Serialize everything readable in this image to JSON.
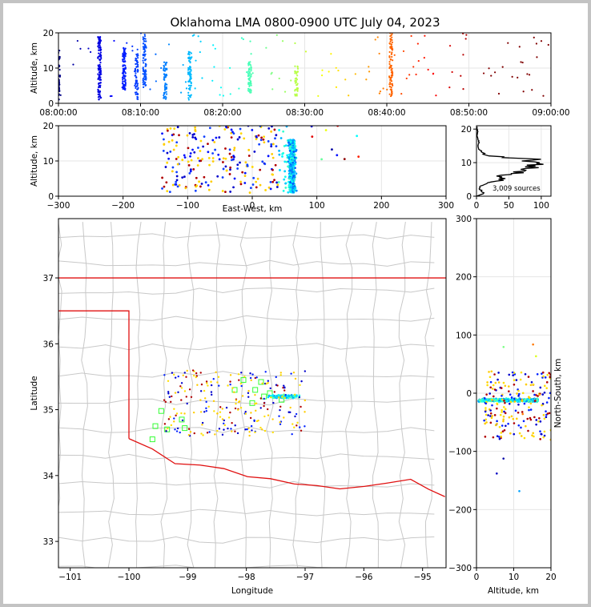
{
  "title": "Oklahoma LMA 0800-0900 UTC July 04, 2023",
  "colors": {
    "state_border": "#e01010",
    "county": "#c8c8c8",
    "grid": "#e6e6e6",
    "station": "#33ff33"
  },
  "chart_data": [
    {
      "id": "time-height",
      "type": "scatter",
      "ylabel": "Altitude, km",
      "ylim": [
        0,
        20
      ],
      "xlim": [
        "08:00:00",
        "09:00:00"
      ],
      "yticks": [
        "0",
        "10",
        "20"
      ],
      "xticks": [
        "08:00:00",
        "08:10:00",
        "08:20:00",
        "08:30:00",
        "08:40:00",
        "08:50:00",
        "09:00:00"
      ],
      "colormap": "jet by time",
      "clusters": [
        {
          "t_min": 0,
          "alt": [
            1,
            15
          ],
          "n": 60
        },
        {
          "t_min": 5,
          "alt": [
            1,
            19
          ],
          "n": 120
        },
        {
          "t_min": 8,
          "alt": [
            4,
            16
          ],
          "n": 90
        },
        {
          "t_min": 9.5,
          "alt": [
            1,
            14
          ],
          "n": 60
        },
        {
          "t_min": 10.5,
          "alt": [
            5,
            20
          ],
          "n": 80
        },
        {
          "t_min": 13,
          "alt": [
            1,
            12
          ],
          "n": 60
        },
        {
          "t_min": 16,
          "alt": [
            1,
            15
          ],
          "n": 70
        },
        {
          "t_min": 23.3,
          "alt": [
            3,
            12
          ],
          "n": 60
        },
        {
          "t_min": 29,
          "alt": [
            2,
            11
          ],
          "n": 40
        },
        {
          "t_min": 40.5,
          "alt": [
            2,
            20
          ],
          "n": 80
        }
      ]
    },
    {
      "id": "ew-height",
      "type": "scatter",
      "xlabel": "East-West, km",
      "ylabel": "Altitude, km",
      "xlim": [
        -300,
        300
      ],
      "ylim": [
        0,
        20
      ],
      "xticks": [
        "−300",
        "−200",
        "−100",
        "0",
        "100",
        "200",
        "300"
      ],
      "yticks": [
        "0",
        "10",
        "20"
      ]
    },
    {
      "id": "altitude-histogram",
      "type": "line",
      "xlim": [
        0,
        115
      ],
      "ylim": [
        0,
        21
      ],
      "xticks": [
        "0",
        "50",
        "100"
      ],
      "yticks": [
        "0",
        "10",
        "20"
      ],
      "annotation": "3,009 sources",
      "profile": [
        [
          0,
          0
        ],
        [
          14,
          1
        ],
        [
          4,
          2
        ],
        [
          6,
          3
        ],
        [
          18,
          4
        ],
        [
          45,
          5
        ],
        [
          35,
          6
        ],
        [
          60,
          7
        ],
        [
          75,
          8
        ],
        [
          95,
          9
        ],
        [
          110,
          10
        ],
        [
          80,
          11
        ],
        [
          20,
          12
        ],
        [
          10,
          13
        ],
        [
          3,
          14
        ],
        [
          2,
          15
        ],
        [
          4,
          16
        ],
        [
          2,
          17
        ],
        [
          1,
          18
        ],
        [
          2,
          19
        ],
        [
          1,
          20
        ]
      ]
    },
    {
      "id": "plan-view",
      "type": "scatter",
      "xlabel": "Longitude",
      "ylabel": "Latitude",
      "xlim": [
        -101.2,
        -94.6
      ],
      "ylim": [
        32.6,
        37.9
      ],
      "xticks": [
        "−101",
        "−100",
        "−99",
        "−98",
        "−97",
        "−96",
        "−95"
      ],
      "yticks": [
        "33",
        "34",
        "35",
        "36",
        "37"
      ]
    },
    {
      "id": "ns-height",
      "type": "scatter",
      "xlabel": "Altitude, km",
      "ylabel": "North-South, km",
      "xlim": [
        0,
        20
      ],
      "ylim": [
        -300,
        300
      ],
      "xticks": [
        "0",
        "10",
        "20"
      ],
      "yticks": [
        "−300",
        "−200",
        "−100",
        "0",
        "100",
        "200",
        "300"
      ]
    }
  ]
}
